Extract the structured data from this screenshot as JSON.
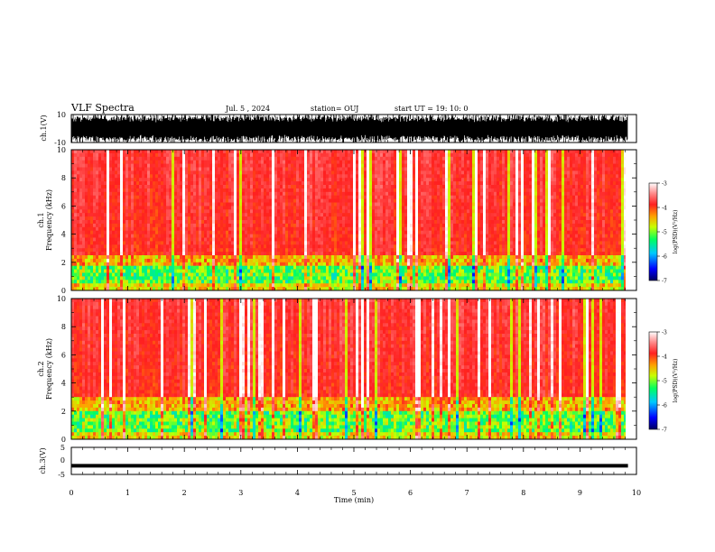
{
  "header": {
    "title": "VLF Spectra",
    "date": "Jul. 5 , 2024",
    "station": "station= OUJ",
    "start_ut": "start UT = 19: 10: 0"
  },
  "chart_data": [
    {
      "type": "line",
      "panel": "ch1-waveform",
      "ylabel": "ch.1(V)",
      "y_ticks": [
        "10",
        "-10"
      ],
      "ylim": [
        -10,
        10
      ],
      "description_of_signal": "dense noisy waveform filling most of range",
      "xlim": [
        0,
        10
      ]
    },
    {
      "type": "heatmap",
      "panel": "ch1-spectrogram",
      "ylabel_line1": "ch.1",
      "ylabel_line2": "Frequency (kHz)",
      "y_ticks": [
        "0",
        "2",
        "4",
        "6",
        "8",
        "10"
      ],
      "ylim": [
        0,
        10
      ],
      "xlim": [
        0,
        9.85
      ],
      "colorbar": {
        "label": "log(PSD)(V²/Hz)",
        "ticks": [
          "-3",
          "-4",
          "-5",
          "-6",
          "-7"
        ],
        "range": [
          -7,
          -3
        ]
      }
    },
    {
      "type": "heatmap",
      "panel": "ch2-spectrogram",
      "ylabel_line1": "ch.2",
      "ylabel_line2": "Frequency (kHz)",
      "y_ticks": [
        "0",
        "2",
        "4",
        "6",
        "8",
        "10"
      ],
      "ylim": [
        0,
        10
      ],
      "xlim": [
        0,
        9.85
      ],
      "colorbar": {
        "label": "log(PSD)(V²/Hz)",
        "ticks": [
          "-3",
          "-4",
          "-5",
          "-6",
          "-7"
        ],
        "range": [
          -7,
          -3
        ]
      }
    },
    {
      "type": "line",
      "panel": "ch3-waveform",
      "ylabel": "ch.3(V)",
      "y_ticks": [
        "5",
        "0",
        "-5"
      ],
      "ylim": [
        -5,
        5
      ],
      "constant_value": -1.8,
      "xlim": [
        0,
        10
      ]
    }
  ],
  "x_axis": {
    "label": "Time (min)",
    "ticks": [
      "0",
      "1",
      "2",
      "3",
      "4",
      "5",
      "6",
      "7",
      "8",
      "9",
      "10"
    ],
    "range": [
      0,
      10
    ]
  },
  "colors": {
    "spectrum_low": "#00008b",
    "spectrum_mid": "#00ff00",
    "spectrum_high": "#ff2020",
    "spectrum_top": "#ffffff"
  }
}
